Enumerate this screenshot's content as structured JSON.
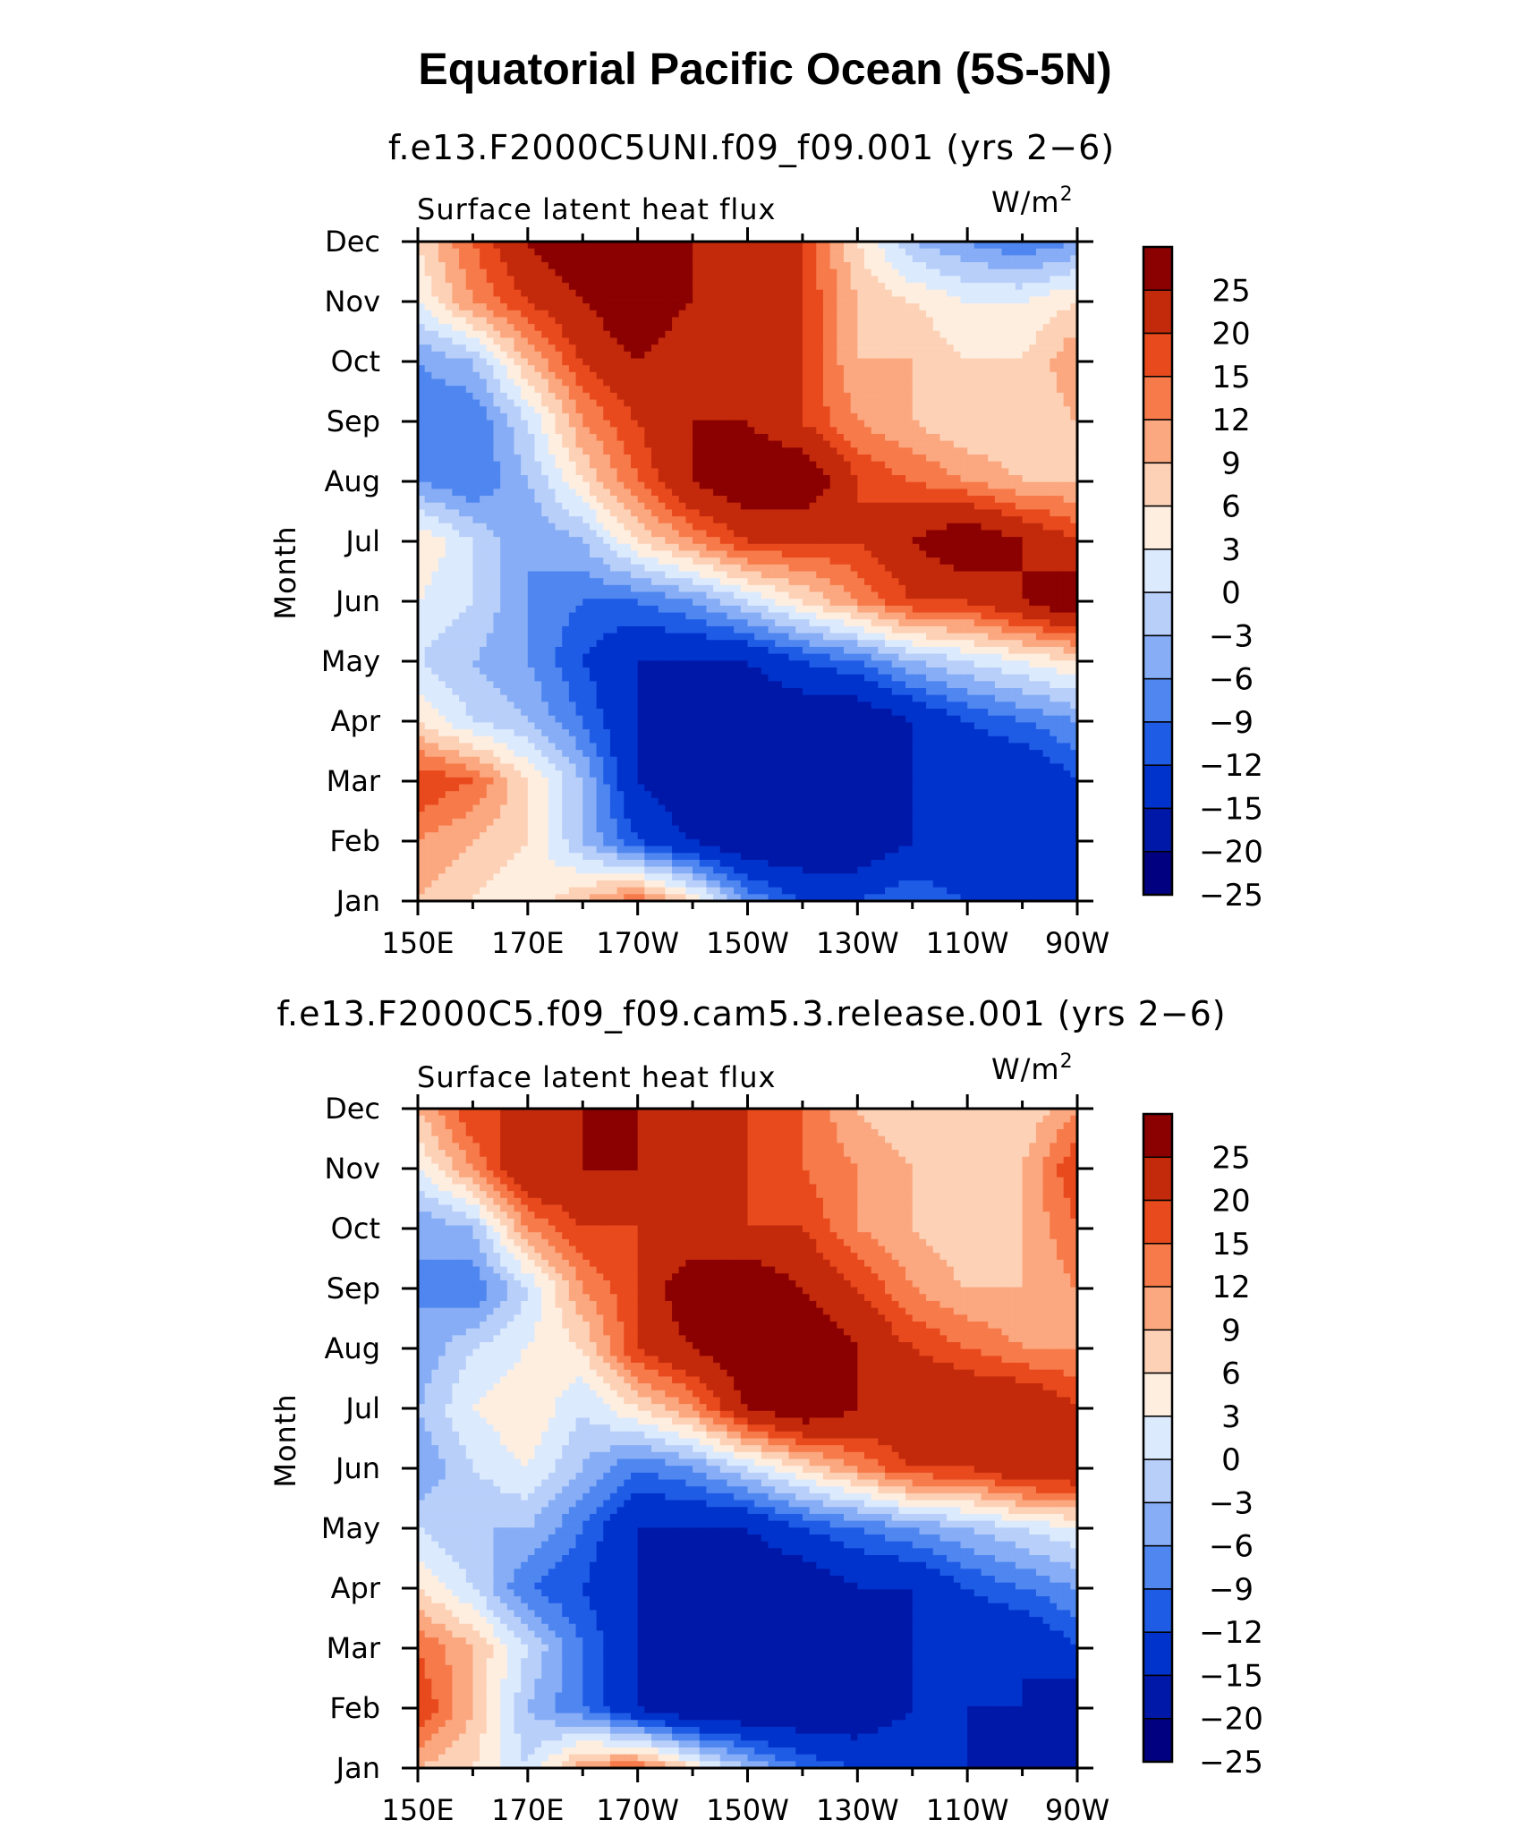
{
  "figure": {
    "title": "Equatorial Pacific Ocean (5S-5N)",
    "units_base": "W/m",
    "units_exp": "2"
  },
  "colorbar": {
    "levels": [
      -25,
      -20,
      -15,
      -12,
      -9,
      -6,
      -3,
      0,
      3,
      6,
      9,
      12,
      15,
      20,
      25
    ],
    "labels": [
      "25",
      "20",
      "15",
      "12",
      "9",
      "6",
      "3",
      "0",
      "−3",
      "−6",
      "−9",
      "−12",
      "−15",
      "−20",
      "−25"
    ],
    "colors": [
      "#000080",
      "#0018a8",
      "#0033cc",
      "#1f5ce6",
      "#4f86f0",
      "#86adf5",
      "#b8cffa",
      "#dceafd",
      "#feeee0",
      "#fdd1b6",
      "#fba77f",
      "#f77a4a",
      "#e84a1d",
      "#c22a0b",
      "#8b0000"
    ]
  },
  "chart_data": [
    {
      "type": "heatmap",
      "subtitle": "f.e13.F2000C5UNI.f09_f09.001 (yrs 2−6)",
      "variable": "Surface latent heat flux",
      "ylabel": "Month",
      "x_tick_labels": [
        "150E",
        "170E",
        "170W",
        "150W",
        "130W",
        "110W",
        "90W"
      ],
      "y_tick_labels": [
        "Jan",
        "Feb",
        "Mar",
        "Apr",
        "May",
        "Jun",
        "Jul",
        "Aug",
        "Sep",
        "Oct",
        "Nov",
        "Dec"
      ],
      "xlim": [
        150,
        270
      ],
      "ylim": [
        1,
        12
      ],
      "x": [
        150,
        160,
        170,
        180,
        190,
        200,
        210,
        220,
        230,
        240,
        250,
        260,
        270
      ],
      "y": [
        "Jan",
        "Feb",
        "Mar",
        "Apr",
        "May",
        "Jun",
        "Jul",
        "Aug",
        "Sep",
        "Oct",
        "Nov",
        "Dec"
      ],
      "z": [
        [
          6,
          3,
          0,
          6,
          12,
          3,
          -9,
          -15,
          -15,
          -12,
          -15,
          -20,
          -20
        ],
        [
          9,
          6,
          3,
          -6,
          -15,
          -20,
          -25,
          -25,
          -25,
          -20,
          -20,
          -20,
          -20
        ],
        [
          15,
          12,
          3,
          -6,
          -20,
          -25,
          -25,
          -25,
          -25,
          -20,
          -20,
          -20,
          -15
        ],
        [
          3,
          -3,
          -6,
          -12,
          -20,
          -25,
          -25,
          -25,
          -25,
          -20,
          -15,
          -12,
          -9
        ],
        [
          -3,
          -6,
          -9,
          -15,
          -20,
          -20,
          -20,
          -15,
          -12,
          -6,
          -3,
          0,
          3
        ],
        [
          0,
          -3,
          -9,
          -12,
          -12,
          -9,
          -3,
          3,
          9,
          15,
          15,
          20,
          25
        ],
        [
          3,
          -3,
          -9,
          -6,
          3,
          9,
          15,
          15,
          15,
          20,
          25,
          20,
          15
        ],
        [
          -9,
          -12,
          -6,
          3,
          12,
          20,
          25,
          25,
          15,
          12,
          9,
          6,
          6
        ],
        [
          -12,
          -12,
          -3,
          9,
          15,
          20,
          20,
          15,
          9,
          6,
          3,
          3,
          6
        ],
        [
          -9,
          -6,
          6,
          15,
          20,
          15,
          15,
          15,
          6,
          6,
          3,
          3,
          9
        ],
        [
          0,
          9,
          15,
          20,
          25,
          20,
          15,
          15,
          6,
          3,
          0,
          0,
          3
        ],
        [
          3,
          12,
          20,
          25,
          25,
          20,
          15,
          15,
          3,
          -6,
          -9,
          -12,
          -9
        ]
      ]
    },
    {
      "type": "heatmap",
      "subtitle": "f.e13.F2000C5.f09_f09.cam5.3.release.001 (yrs 2−6)",
      "variable": "Surface latent heat flux",
      "ylabel": "Month",
      "x_tick_labels": [
        "150E",
        "170E",
        "170W",
        "150W",
        "130W",
        "110W",
        "90W"
      ],
      "y_tick_labels": [
        "Jan",
        "Feb",
        "Mar",
        "Apr",
        "May",
        "Jun",
        "Jul",
        "Aug",
        "Sep",
        "Oct",
        "Nov",
        "Dec"
      ],
      "xlim": [
        150,
        270
      ],
      "ylim": [
        1,
        12
      ],
      "x": [
        150,
        160,
        170,
        180,
        190,
        200,
        210,
        220,
        230,
        240,
        250,
        260,
        270
      ],
      "y": [
        "Jan",
        "Feb",
        "Mar",
        "Apr",
        "May",
        "Jun",
        "Jul",
        "Aug",
        "Sep",
        "Oct",
        "Nov",
        "Dec"
      ],
      "z": [
        [
          6,
          3,
          -3,
          9,
          12,
          3,
          -6,
          -12,
          -15,
          -15,
          -20,
          -25,
          -20
        ],
        [
          15,
          6,
          -6,
          -12,
          -20,
          -25,
          -25,
          -25,
          -25,
          -20,
          -20,
          -20,
          -25
        ],
        [
          12,
          6,
          -3,
          -12,
          -20,
          -25,
          -25,
          -25,
          -25,
          -20,
          -20,
          -20,
          -15
        ],
        [
          3,
          -3,
          -12,
          -15,
          -20,
          -25,
          -25,
          -25,
          -20,
          -20,
          -15,
          -12,
          -9
        ],
        [
          -3,
          -6,
          -6,
          -12,
          -20,
          -20,
          -20,
          -15,
          -12,
          -9,
          -6,
          -3,
          0
        ],
        [
          -9,
          -3,
          0,
          -6,
          -12,
          -9,
          -3,
          3,
          9,
          15,
          15,
          20,
          20
        ],
        [
          -6,
          0,
          3,
          -3,
          3,
          9,
          20,
          25,
          20,
          20,
          20,
          20,
          15
        ],
        [
          -9,
          -3,
          0,
          3,
          15,
          20,
          25,
          25,
          20,
          15,
          12,
          9,
          9
        ],
        [
          -9,
          -12,
          -3,
          9,
          15,
          25,
          25,
          20,
          15,
          9,
          6,
          6,
          9
        ],
        [
          -9,
          -6,
          9,
          15,
          15,
          15,
          15,
          15,
          9,
          6,
          3,
          6,
          12
        ],
        [
          0,
          9,
          20,
          20,
          20,
          20,
          15,
          12,
          9,
          6,
          6,
          6,
          15
        ],
        [
          6,
          15,
          15,
          20,
          20,
          15,
          15,
          12,
          6,
          3,
          3,
          3,
          9
        ]
      ]
    }
  ]
}
